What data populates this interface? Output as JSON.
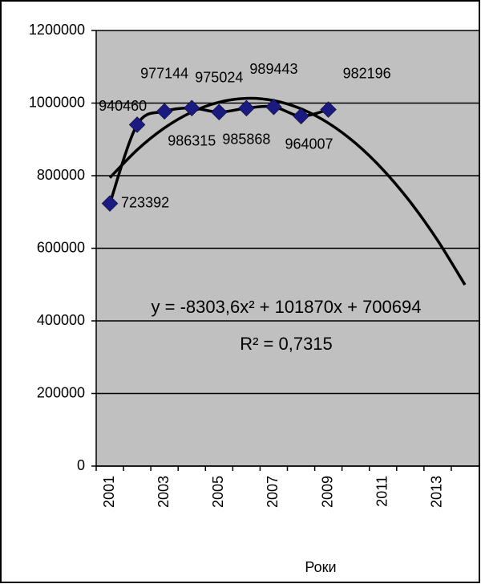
{
  "chart_data": {
    "type": "line",
    "categories": [
      "2001",
      null,
      "2003",
      null,
      "2005",
      null,
      "2007",
      null,
      "2009",
      null,
      "2011",
      null,
      "2013",
      null
    ],
    "series": [
      {
        "color": "#1a1a80",
        "values": [
          723392,
          940460,
          977144,
          986315,
          975024,
          985868,
          989443,
          964007,
          982196,
          null,
          null,
          null,
          null,
          null
        ]
      }
    ],
    "trendline": {
      "color": "#000000",
      "values": [
        794260,
        871220,
        931572,
        975316,
        1002454,
        1012984,
        1006908,
        984224,
        944932,
        889034,
        816528,
        727416,
        621696,
        499368
      ]
    },
    "equation": "y = -8303,6x² + 101870x + 700694",
    "r_squared": "R² = 0,7315",
    "x_label": "Роки",
    "ylim": [
      0,
      1200000
    ],
    "yticks": [
      0,
      200000,
      400000,
      600000,
      800000,
      1000000,
      1200000
    ],
    "grid": true
  }
}
